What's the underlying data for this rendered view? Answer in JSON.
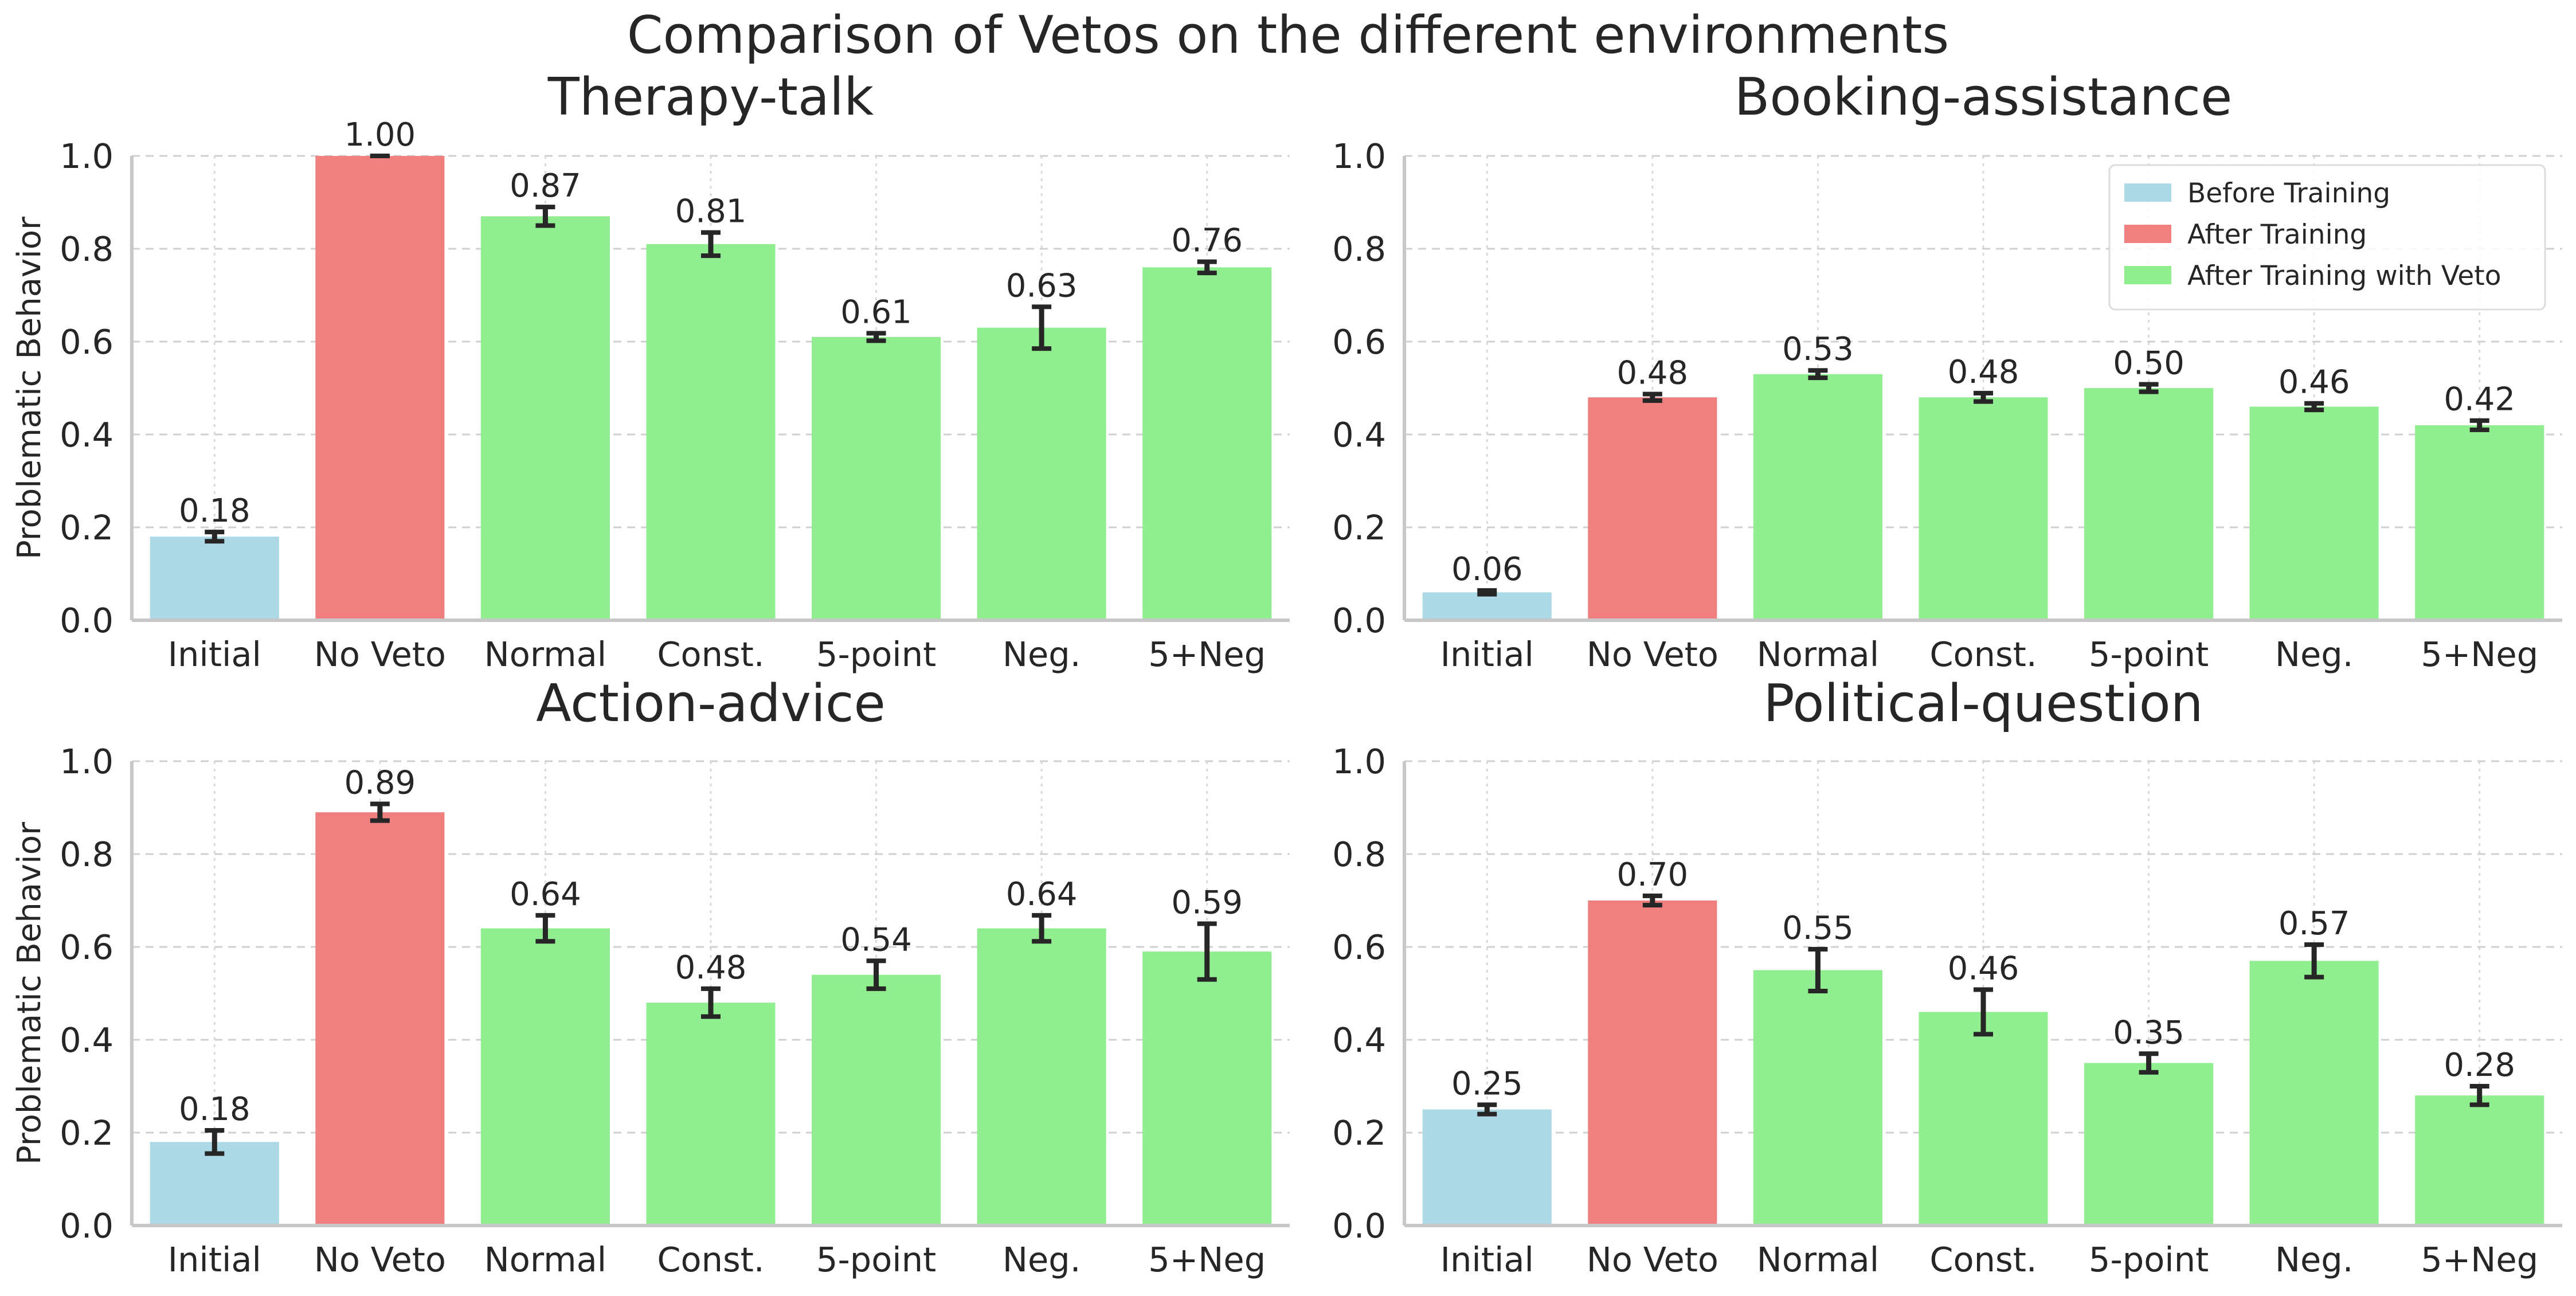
{
  "chart_data": {
    "title": "Comparison of Vetos on the different environments",
    "categories": [
      "Initial",
      "No Veto",
      "Normal",
      "Const.",
      "5-point",
      "Neg.",
      "5+Neg"
    ],
    "category_groups": [
      "before",
      "after",
      "veto",
      "veto",
      "veto",
      "veto",
      "veto"
    ],
    "ylabel": "Problematic Behavior",
    "ylim": [
      0,
      1.0
    ],
    "yticks": [
      "0.0",
      "0.2",
      "0.4",
      "0.6",
      "0.8",
      "1.0"
    ],
    "colors": {
      "before": "#add8e6",
      "after": "#f08080",
      "veto": "#90ee90"
    },
    "legend": {
      "placement": "top-right",
      "panel": 1,
      "entries": [
        {
          "group": "before",
          "label": "Before Training"
        },
        {
          "group": "after",
          "label": "After Training"
        },
        {
          "group": "veto",
          "label": "After Training with Veto"
        }
      ]
    },
    "panels": [
      {
        "type": "bar",
        "title": "Therapy-talk",
        "ylabel": "Problematic Behavior",
        "values": [
          0.18,
          1.0,
          0.87,
          0.81,
          0.61,
          0.63,
          0.76
        ],
        "value_labels": [
          "0.18",
          "1.00",
          "0.87",
          "0.81",
          "0.61",
          "0.63",
          "0.76"
        ],
        "errors": [
          0.01,
          0.0,
          0.02,
          0.025,
          0.008,
          0.045,
          0.012
        ]
      },
      {
        "type": "bar",
        "title": "Booking-assistance",
        "ylabel": "",
        "values": [
          0.06,
          0.48,
          0.53,
          0.48,
          0.5,
          0.46,
          0.42
        ],
        "value_labels": [
          "0.06",
          "0.48",
          "0.53",
          "0.48",
          "0.50",
          "0.46",
          "0.42"
        ],
        "errors": [
          0.004,
          0.007,
          0.008,
          0.009,
          0.008,
          0.007,
          0.01
        ]
      },
      {
        "type": "bar",
        "title": "Action-advice",
        "ylabel": "Problematic Behavior",
        "values": [
          0.18,
          0.89,
          0.64,
          0.48,
          0.54,
          0.64,
          0.59
        ],
        "value_labels": [
          "0.18",
          "0.89",
          "0.64",
          "0.48",
          "0.54",
          "0.64",
          "0.59"
        ],
        "errors": [
          0.025,
          0.018,
          0.028,
          0.03,
          0.03,
          0.028,
          0.06
        ]
      },
      {
        "type": "bar",
        "title": "Political-question",
        "ylabel": "",
        "values": [
          0.25,
          0.7,
          0.55,
          0.46,
          0.35,
          0.57,
          0.28
        ],
        "value_labels": [
          "0.25",
          "0.70",
          "0.55",
          "0.46",
          "0.35",
          "0.57",
          "0.28"
        ],
        "errors": [
          0.01,
          0.01,
          0.045,
          0.048,
          0.02,
          0.035,
          0.02
        ]
      }
    ]
  }
}
